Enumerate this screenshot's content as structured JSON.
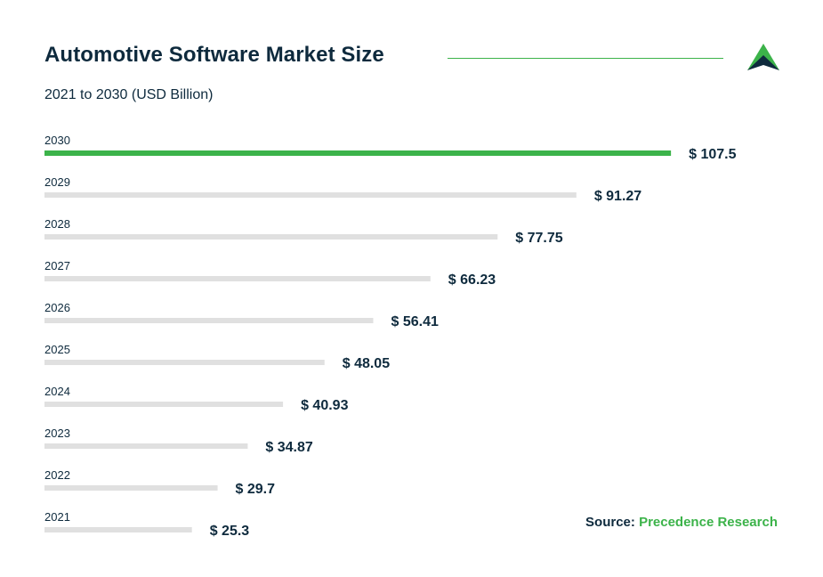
{
  "header": {
    "title": "Automotive Software Market Size",
    "subtitle": "2021 to 2030 (USD Billion)"
  },
  "footer": {
    "source_label": "Source:",
    "source_value": "Precedence Research"
  },
  "colors": {
    "highlight_bar": "#3cb34a",
    "bar": "#e0e0e0",
    "text": "#0e2a3d",
    "accent": "#3cb34a"
  },
  "chart_data": {
    "type": "bar",
    "orientation": "horizontal",
    "title": "Automotive Software Market Size",
    "subtitle": "2021 to 2030 (USD Billion)",
    "categories": [
      "2030",
      "2029",
      "2028",
      "2027",
      "2026",
      "2025",
      "2024",
      "2023",
      "2022",
      "2021"
    ],
    "values": [
      107.5,
      91.27,
      77.75,
      66.23,
      56.41,
      48.05,
      40.93,
      34.87,
      29.7,
      25.3
    ],
    "value_labels": [
      "$ 107.5",
      "$ 91.27",
      "$ 77.75",
      "$ 66.23",
      "$ 56.41",
      "$ 48.05",
      "$ 40.93",
      "$ 34.87",
      "$ 29.7",
      "$ 25.3"
    ],
    "highlight_category": "2030",
    "grid": false,
    "legend": "none"
  }
}
